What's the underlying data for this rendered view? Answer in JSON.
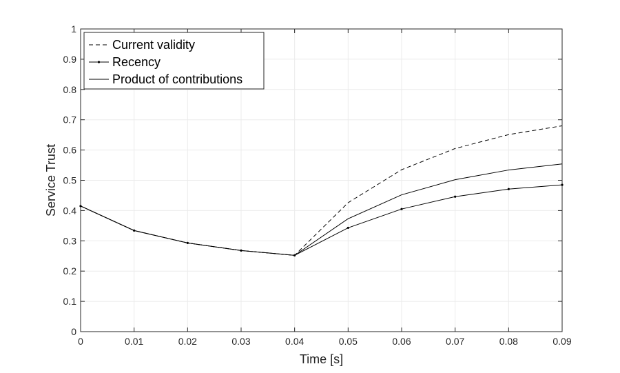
{
  "chart_data": {
    "type": "line",
    "title": "",
    "xlabel": "Time [s]",
    "ylabel": "Service Trust",
    "xlim": [
      0,
      0.09
    ],
    "ylim": [
      0,
      1
    ],
    "x_ticks": [
      "0",
      "0.01",
      "0.02",
      "0.03",
      "0.04",
      "0.05",
      "0.06",
      "0.07",
      "0.08",
      "0.09"
    ],
    "y_ticks": [
      "0",
      "0.1",
      "0.2",
      "0.3",
      "0.4",
      "0.5",
      "0.6",
      "0.7",
      "0.8",
      "0.9",
      "1"
    ],
    "grid": true,
    "legend_position": "top-left",
    "x": [
      0,
      0.01,
      0.02,
      0.03,
      0.04,
      0.05,
      0.06,
      0.07,
      0.08,
      0.09
    ],
    "series": [
      {
        "name": "Current validity",
        "style": "dashed",
        "color": "#000000",
        "values": [
          0.415,
          0.334,
          0.293,
          0.268,
          0.252,
          0.426,
          0.535,
          0.605,
          0.651,
          0.68
        ]
      },
      {
        "name": "Recency",
        "style": "solid-with-dots",
        "color": "#000000",
        "values": [
          0.415,
          0.334,
          0.293,
          0.268,
          0.252,
          0.343,
          0.405,
          0.446,
          0.471,
          0.485
        ]
      },
      {
        "name": "Product of contributions",
        "style": "solid",
        "color": "#000000",
        "values": [
          0.415,
          0.334,
          0.293,
          0.268,
          0.252,
          0.373,
          0.452,
          0.502,
          0.534,
          0.554
        ]
      }
    ]
  }
}
